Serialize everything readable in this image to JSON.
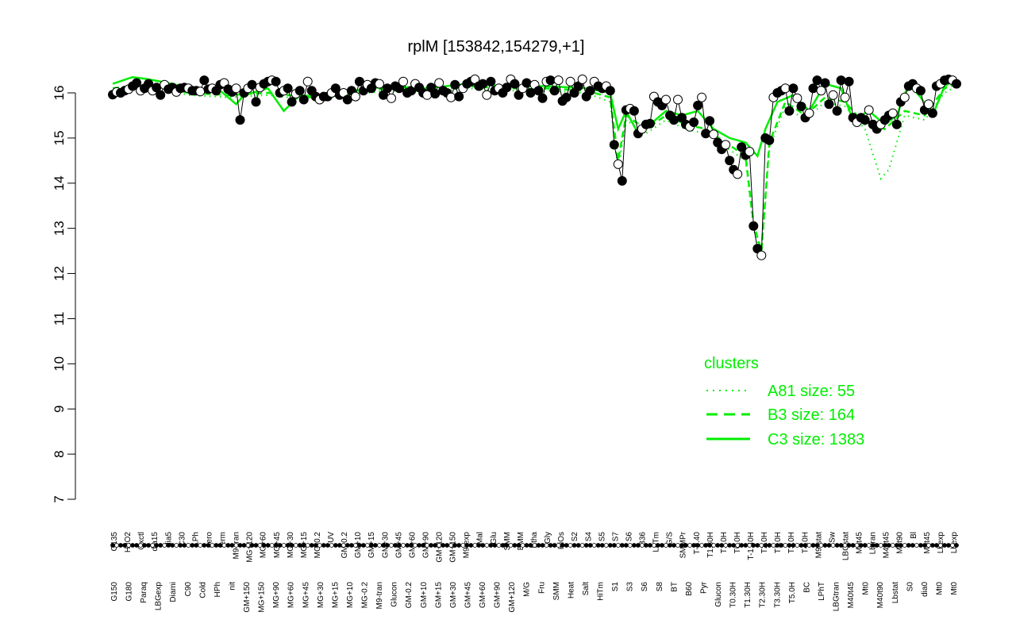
{
  "chart_data": {
    "type": "line",
    "title": "rplM [153842,154279,+1]",
    "xlabel": "",
    "ylabel": "",
    "ylim": [
      7,
      16.6
    ],
    "yticks": [
      7,
      8,
      9,
      10,
      11,
      12,
      13,
      14,
      15,
      16
    ],
    "grid": false,
    "legend": {
      "title": "clusters",
      "placement": "bottom-right",
      "entries": [
        {
          "label": "A81 size: 55",
          "style": "dotted"
        },
        {
          "label": "B3 size: 164",
          "style": "dashed"
        },
        {
          "label": "C3 size: 1383",
          "style": "solid"
        }
      ]
    },
    "series_color": "#00ee00",
    "upper_labels": [
      "G135",
      "H2O2",
      "Oxctl",
      "dia15",
      "dia5",
      "C30",
      "LPh",
      "aero",
      "ferm",
      "M9-tran",
      "MG+120",
      "MG+60",
      "MG+45",
      "MG+30",
      "MG+15",
      "MG-0.2",
      "UV",
      "GM-0.2",
      "GM+10",
      "GM+15",
      "GM+30",
      "GM+45",
      "GM+60",
      "GM+90",
      "GM+120",
      "GM+150",
      "M9-exp",
      "Mal",
      "Glu",
      "SMM",
      "BMM",
      "Etha",
      "Gly",
      "HiOs",
      "S2",
      "S4",
      "S5",
      "S7",
      "S6",
      "B36",
      "LoTm",
      "G/S",
      "SMMPr",
      "T-0.40",
      "T1.30H",
      "T1.0H",
      "T0.0H",
      "T-1.40H",
      "T2.0H",
      "T1.0H",
      "T3.0H",
      "T4.0H",
      "M9-stat",
      "Sw",
      "LBGstat",
      "M0t45",
      "Lbtran",
      "M40t45",
      "M0t90",
      "Bl",
      "M0t45",
      "Lbexp",
      "Lbexp"
    ],
    "lower_labels": [
      "G150",
      "G180",
      "Paraq",
      "LBGexp",
      "Diami",
      "C90",
      "Cold",
      "HPh",
      "nit",
      "GM+150",
      "MG+150",
      "MG+90",
      "MG+60",
      "MG+45",
      "MG+30",
      "MG+15",
      "MG+10",
      "MG-0.2",
      "M9-tran",
      "Glucon",
      "GM-0.2",
      "GM+10",
      "GM+15",
      "GM+30",
      "GM+45",
      "GM+60",
      "GM+90",
      "GM+120",
      "M/G",
      "Fru",
      "SMM",
      "Heat",
      "Salt",
      "HiTm",
      "S1",
      "S3",
      "S6",
      "S8",
      "BT",
      "B60",
      "Pyr",
      "Glucon",
      "T0.30H",
      "T1.30H",
      "T2.30H",
      "T3.30H",
      "T5.0H",
      "BC",
      "LPhT",
      "LBGtran",
      "M40t45",
      "Mt0",
      "M40t90",
      "Lbstat",
      "S0",
      "dia0",
      "Mt0",
      "Mt0"
    ],
    "x_range": [
      0,
      213
    ],
    "points": [
      [
        1,
        15.96
      ],
      [
        2,
        16.02
      ],
      [
        3,
        16.0
      ],
      [
        4,
        16.05
      ],
      [
        5,
        16.08
      ],
      [
        6,
        16.15
      ],
      [
        7,
        16.22
      ],
      [
        8,
        16.05
      ],
      [
        9,
        16.1
      ],
      [
        10,
        16.2
      ],
      [
        11,
        16.05
      ],
      [
        12,
        16.12
      ],
      [
        13,
        15.95
      ],
      [
        14,
        16.18
      ],
      [
        15,
        16.08
      ],
      [
        16,
        16.12
      ],
      [
        17,
        16.02
      ],
      [
        18,
        16.1
      ],
      [
        19,
        16.12
      ],
      [
        20,
        16.1
      ],
      [
        21,
        16.05
      ],
      [
        22,
        16.05
      ],
      [
        23,
        16.03
      ],
      [
        24,
        16.28
      ],
      [
        25,
        16.08
      ],
      [
        26,
        16.1
      ],
      [
        27,
        16.05
      ],
      [
        28,
        16.18
      ],
      [
        29,
        16.22
      ],
      [
        30,
        16.08
      ],
      [
        31,
        16.02
      ],
      [
        32,
        16.1
      ],
      [
        33,
        15.4
      ],
      [
        34,
        16.0
      ],
      [
        35,
        16.1
      ],
      [
        36,
        16.18
      ],
      [
        37,
        15.8
      ],
      [
        38,
        16.12
      ],
      [
        39,
        16.2
      ],
      [
        40,
        16.25
      ],
      [
        41,
        16.28
      ],
      [
        42,
        16.25
      ],
      [
        43,
        16.0
      ],
      [
        44,
        16.05
      ],
      [
        45,
        16.1
      ],
      [
        46,
        15.8
      ],
      [
        47,
        15.98
      ],
      [
        48,
        16.05
      ],
      [
        49,
        15.85
      ],
      [
        50,
        16.25
      ],
      [
        51,
        16.05
      ],
      [
        52,
        15.92
      ],
      [
        53,
        15.85
      ],
      [
        54,
        15.92
      ],
      [
        55,
        15.92
      ],
      [
        56,
        16.0
      ],
      [
        57,
        16.1
      ],
      [
        58,
        15.95
      ],
      [
        59,
        16.0
      ],
      [
        60,
        15.85
      ],
      [
        61,
        16.05
      ],
      [
        62,
        15.92
      ],
      [
        63,
        16.25
      ],
      [
        64,
        16.05
      ],
      [
        65,
        16.18
      ],
      [
        66,
        16.1
      ],
      [
        67,
        16.22
      ],
      [
        68,
        16.2
      ],
      [
        69,
        15.95
      ],
      [
        70,
        16.1
      ],
      [
        71,
        15.88
      ],
      [
        72,
        16.15
      ],
      [
        73,
        16.1
      ],
      [
        74,
        16.25
      ],
      [
        75,
        16.0
      ],
      [
        76,
        16.05
      ],
      [
        77,
        16.2
      ],
      [
        78,
        16.12
      ],
      [
        79,
        16.0
      ],
      [
        80,
        15.95
      ],
      [
        81,
        16.12
      ],
      [
        82,
        15.98
      ],
      [
        83,
        16.22
      ],
      [
        84,
        16.05
      ],
      [
        85,
        16.0
      ],
      [
        86,
        15.9
      ],
      [
        87,
        16.18
      ],
      [
        88,
        15.92
      ],
      [
        89,
        16.1
      ],
      [
        90,
        16.2
      ],
      [
        91,
        16.25
      ],
      [
        92,
        16.3
      ],
      [
        93,
        16.15
      ],
      [
        94,
        16.2
      ],
      [
        95,
        15.95
      ],
      [
        96,
        16.25
      ],
      [
        97,
        16.05
      ],
      [
        98,
        16.1
      ],
      [
        99,
        16.0
      ],
      [
        100,
        16.12
      ],
      [
        101,
        16.3
      ],
      [
        102,
        16.2
      ],
      [
        103,
        15.95
      ],
      [
        104,
        16.1
      ],
      [
        105,
        16.22
      ],
      [
        106,
        16.0
      ],
      [
        107,
        16.18
      ],
      [
        108,
        16.05
      ],
      [
        109,
        15.88
      ],
      [
        110,
        16.25
      ],
      [
        111,
        16.28
      ],
      [
        112,
        16.05
      ],
      [
        113,
        16.28
      ],
      [
        114,
        15.82
      ],
      [
        115,
        15.9
      ],
      [
        116,
        16.25
      ],
      [
        117,
        16.0
      ],
      [
        118,
        16.15
      ],
      [
        119,
        16.3
      ],
      [
        120,
        15.92
      ],
      [
        121,
        16.05
      ],
      [
        122,
        16.25
      ],
      [
        123,
        16.15
      ],
      [
        124,
        16.1
      ],
      [
        125,
        16.15
      ],
      [
        126,
        16.05
      ],
      [
        127,
        14.85
      ],
      [
        128,
        14.42
      ],
      [
        129,
        14.05
      ],
      [
        130,
        15.62
      ],
      [
        131,
        15.65
      ],
      [
        132,
        15.6
      ],
      [
        133,
        15.1
      ],
      [
        134,
        15.2
      ],
      [
        135,
        15.3
      ],
      [
        136,
        15.32
      ],
      [
        137,
        15.92
      ],
      [
        138,
        15.8
      ],
      [
        139,
        15.72
      ],
      [
        140,
        15.85
      ],
      [
        141,
        15.5
      ],
      [
        142,
        15.4
      ],
      [
        143,
        15.85
      ],
      [
        144,
        15.45
      ],
      [
        145,
        15.3
      ],
      [
        146,
        15.25
      ],
      [
        147,
        15.35
      ],
      [
        148,
        15.72
      ],
      [
        149,
        15.9
      ],
      [
        150,
        15.1
      ],
      [
        151,
        15.38
      ],
      [
        152,
        15.08
      ],
      [
        153,
        14.9
      ],
      [
        154,
        14.75
      ],
      [
        155,
        14.85
      ],
      [
        156,
        14.5
      ],
      [
        157,
        14.3
      ],
      [
        158,
        14.2
      ],
      [
        159,
        14.8
      ],
      [
        160,
        14.62
      ],
      [
        161,
        14.7
      ],
      [
        162,
        13.05
      ],
      [
        163,
        12.55
      ],
      [
        164,
        12.4
      ],
      [
        165,
        15.0
      ],
      [
        166,
        14.95
      ],
      [
        167,
        15.9
      ],
      [
        168,
        16.0
      ],
      [
        169,
        16.05
      ],
      [
        170,
        16.1
      ],
      [
        171,
        15.6
      ],
      [
        172,
        16.1
      ],
      [
        173,
        15.88
      ],
      [
        174,
        15.7
      ],
      [
        175,
        15.45
      ],
      [
        176,
        15.55
      ],
      [
        177,
        16.1
      ],
      [
        178,
        16.28
      ],
      [
        179,
        16.05
      ],
      [
        180,
        16.22
      ],
      [
        181,
        15.75
      ],
      [
        182,
        15.95
      ],
      [
        183,
        15.6
      ],
      [
        184,
        16.28
      ],
      [
        185,
        15.9
      ],
      [
        186,
        16.25
      ],
      [
        187,
        15.45
      ],
      [
        188,
        15.35
      ],
      [
        189,
        15.45
      ],
      [
        190,
        15.4
      ],
      [
        191,
        15.62
      ],
      [
        192,
        15.3
      ],
      [
        193,
        15.2
      ],
      [
        194,
        15.3
      ],
      [
        195,
        15.4
      ],
      [
        196,
        15.5
      ],
      [
        197,
        15.55
      ],
      [
        198,
        15.3
      ],
      [
        199,
        15.8
      ],
      [
        200,
        15.9
      ],
      [
        201,
        16.15
      ],
      [
        202,
        16.2
      ],
      [
        203,
        16.1
      ],
      [
        204,
        16.05
      ],
      [
        205,
        15.62
      ],
      [
        206,
        15.75
      ],
      [
        207,
        15.55
      ],
      [
        208,
        16.15
      ],
      [
        209,
        16.2
      ],
      [
        210,
        16.28
      ],
      [
        211,
        16.3
      ],
      [
        212,
        16.28
      ],
      [
        213,
        16.2
      ]
    ],
    "trend_c3": [
      [
        1,
        16.2
      ],
      [
        6,
        16.35
      ],
      [
        10,
        16.3
      ],
      [
        16,
        16.2
      ],
      [
        22,
        16.05
      ],
      [
        28,
        16.05
      ],
      [
        32,
        15.75
      ],
      [
        34,
        15.95
      ],
      [
        40,
        16.1
      ],
      [
        44,
        15.6
      ],
      [
        48,
        15.95
      ],
      [
        55,
        15.9
      ],
      [
        62,
        16.05
      ],
      [
        70,
        16.15
      ],
      [
        80,
        16.1
      ],
      [
        90,
        16.2
      ],
      [
        100,
        16.15
      ],
      [
        110,
        16.15
      ],
      [
        120,
        16.1
      ],
      [
        126,
        16.0
      ],
      [
        128,
        15.2
      ],
      [
        130,
        15.6
      ],
      [
        133,
        15.1
      ],
      [
        136,
        15.3
      ],
      [
        140,
        15.6
      ],
      [
        144,
        15.5
      ],
      [
        148,
        15.6
      ],
      [
        152,
        15.2
      ],
      [
        156,
        15.0
      ],
      [
        160,
        14.9
      ],
      [
        163,
        14.6
      ],
      [
        165,
        15.2
      ],
      [
        168,
        15.8
      ],
      [
        172,
        15.95
      ],
      [
        176,
        15.6
      ],
      [
        180,
        16.2
      ],
      [
        184,
        16.1
      ],
      [
        187,
        15.4
      ],
      [
        191,
        15.6
      ],
      [
        195,
        15.3
      ],
      [
        198,
        15.5
      ],
      [
        201,
        16.2
      ],
      [
        204,
        15.9
      ],
      [
        207,
        15.5
      ],
      [
        210,
        16.15
      ],
      [
        213,
        16.3
      ]
    ],
    "trend_b3": [
      [
        1,
        16.1
      ],
      [
        10,
        16.2
      ],
      [
        20,
        16.0
      ],
      [
        30,
        15.95
      ],
      [
        40,
        16.0
      ],
      [
        50,
        15.9
      ],
      [
        60,
        16.0
      ],
      [
        70,
        16.1
      ],
      [
        80,
        16.05
      ],
      [
        90,
        16.15
      ],
      [
        100,
        16.1
      ],
      [
        110,
        16.1
      ],
      [
        120,
        16.05
      ],
      [
        126,
        15.9
      ],
      [
        128,
        14.5
      ],
      [
        130,
        15.5
      ],
      [
        135,
        15.2
      ],
      [
        140,
        15.5
      ],
      [
        145,
        15.3
      ],
      [
        150,
        15.2
      ],
      [
        155,
        14.9
      ],
      [
        160,
        14.6
      ],
      [
        162,
        13.1
      ],
      [
        164,
        12.5
      ],
      [
        166,
        14.9
      ],
      [
        170,
        15.8
      ],
      [
        175,
        15.5
      ],
      [
        180,
        15.9
      ],
      [
        185,
        15.8
      ],
      [
        190,
        15.3
      ],
      [
        195,
        15.2
      ],
      [
        200,
        15.6
      ],
      [
        205,
        15.5
      ],
      [
        210,
        16.1
      ],
      [
        213,
        16.2
      ]
    ],
    "trend_a81": [
      [
        1,
        16.05
      ],
      [
        10,
        16.15
      ],
      [
        20,
        15.95
      ],
      [
        30,
        15.9
      ],
      [
        40,
        15.95
      ],
      [
        50,
        15.85
      ],
      [
        60,
        15.95
      ],
      [
        70,
        16.05
      ],
      [
        80,
        16.0
      ],
      [
        90,
        16.1
      ],
      [
        100,
        16.05
      ],
      [
        110,
        16.05
      ],
      [
        120,
        16.0
      ],
      [
        126,
        15.8
      ],
      [
        128,
        14.3
      ],
      [
        130,
        15.4
      ],
      [
        135,
        15.1
      ],
      [
        140,
        15.4
      ],
      [
        145,
        15.2
      ],
      [
        150,
        15.1
      ],
      [
        155,
        14.8
      ],
      [
        160,
        14.5
      ],
      [
        162,
        13.0
      ],
      [
        164,
        12.4
      ],
      [
        166,
        14.8
      ],
      [
        170,
        15.7
      ],
      [
        175,
        15.4
      ],
      [
        180,
        15.8
      ],
      [
        185,
        15.7
      ],
      [
        190,
        15.2
      ],
      [
        194,
        14.1
      ],
      [
        196,
        14.3
      ],
      [
        200,
        15.5
      ],
      [
        205,
        15.4
      ],
      [
        210,
        16.0
      ],
      [
        213,
        16.15
      ]
    ]
  }
}
